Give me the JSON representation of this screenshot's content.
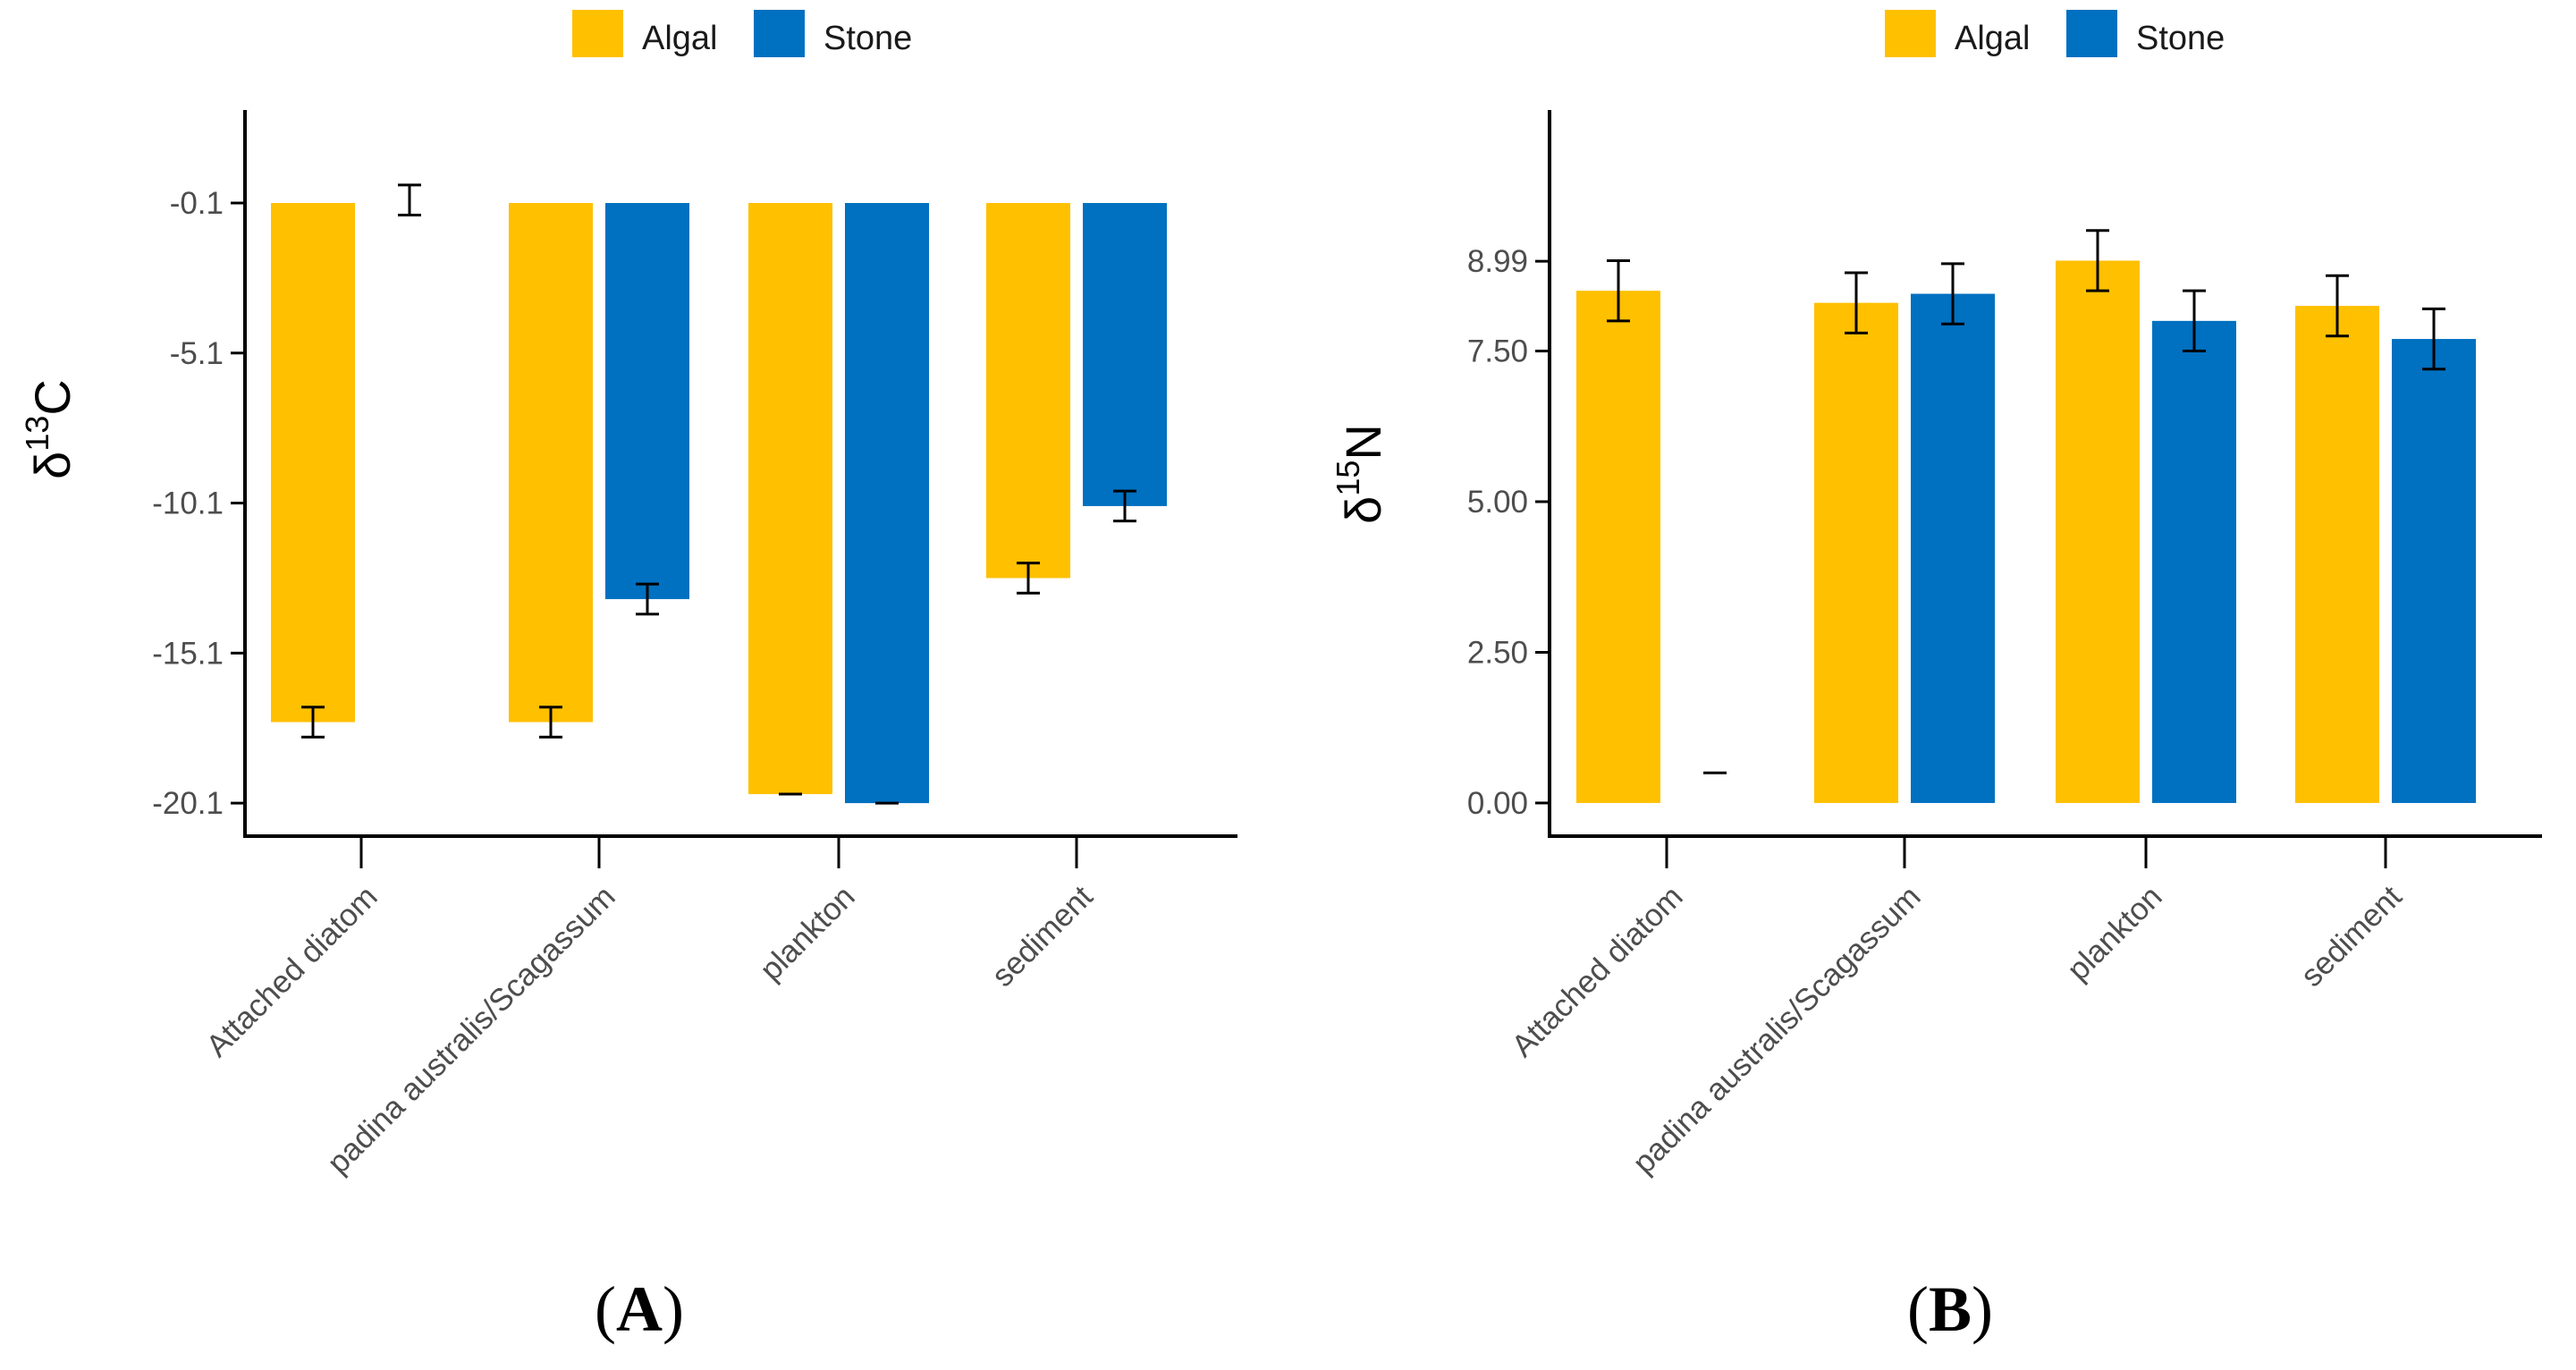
{
  "colors": {
    "algal": "#ffc000",
    "stone": "#0070c0",
    "axis": "#000000",
    "text": "#4d4d4d"
  },
  "chart_data": [
    {
      "type": "bar",
      "panel": "A",
      "panel_prefix": "(",
      "panel_suffix": ")",
      "ylabel_symbol": "δ",
      "ylabel_sup": "13",
      "ylabel_element": "C",
      "categories": [
        "Attached diatom",
        "padina australis/Scagassum",
        "plankton",
        "sediment"
      ],
      "ytick_labels": [
        "-0.1",
        "-5.1",
        "-10.1",
        "-15.1",
        "-20.1"
      ],
      "ytick_values": [
        -0.1,
        -5.1,
        -10.1,
        -15.1,
        -20.1
      ],
      "ylim": [
        -21.2,
        3.0
      ],
      "baseline": -0.1,
      "legend": [
        "Algal",
        "Stone"
      ],
      "series": [
        {
          "name": "Algal",
          "values": [
            -17.4,
            -17.4,
            -19.8,
            -12.6
          ],
          "errors": [
            0.5,
            0.5,
            0.0,
            0.5
          ]
        },
        {
          "name": "Stone",
          "values": [
            0.0,
            -13.3,
            -20.1,
            -10.2
          ],
          "errors": [
            0.5,
            0.5,
            0.0,
            0.5
          ]
        }
      ]
    },
    {
      "type": "bar",
      "panel": "B",
      "panel_prefix": "(",
      "panel_suffix": ")",
      "ylabel_symbol": "δ",
      "ylabel_sup": "15",
      "ylabel_element": "N",
      "categories": [
        "Attached diatom",
        "padina australis/Scagassum",
        "plankton",
        "sediment"
      ],
      "ytick_labels": [
        "0.00",
        "2.50",
        "5.00",
        "7.50",
        "8.99"
      ],
      "ytick_values": [
        0.0,
        2.5,
        5.0,
        7.5,
        8.99
      ],
      "ylim": [
        -0.55,
        11.5
      ],
      "baseline": 0.0,
      "legend": [
        "Algal",
        "Stone"
      ],
      "series": [
        {
          "name": "Algal",
          "values": [
            8.5,
            8.3,
            9.0,
            8.25
          ],
          "errors": [
            0.5,
            0.5,
            0.5,
            0.5
          ]
        },
        {
          "name": "Stone",
          "values": [
            0.5,
            8.45,
            8.0,
            7.7
          ],
          "errors": [
            0.0,
            0.5,
            0.5,
            0.5
          ]
        }
      ]
    }
  ]
}
